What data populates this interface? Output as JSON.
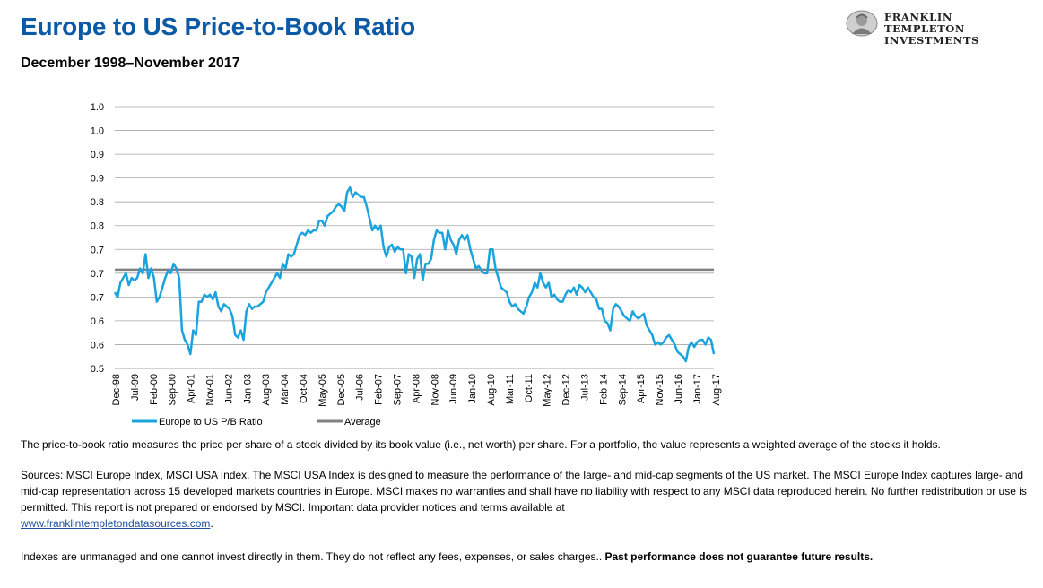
{
  "header": {
    "title": "Europe to US Price-to-Book Ratio",
    "subtitle": "December 1998–November 2017"
  },
  "logo": {
    "line1": "FRANKLIN TEMPLETON",
    "line2": "INVESTMENTS",
    "icon": "franklin-portrait-icon"
  },
  "colors": {
    "title": "#0c5aa6",
    "series_line": "#1aa3dd",
    "average_line": "#808080",
    "gridline": "#a6a6a6",
    "link": "#1f4e9c"
  },
  "chart_data": {
    "type": "line",
    "title": "",
    "xlabel": "",
    "ylabel": "",
    "y_tick_labels": [
      "0.5",
      "0.6",
      "0.6",
      "0.7",
      "0.7",
      "0.7",
      "0.8",
      "0.8",
      "0.9",
      "0.9",
      "1.0",
      "1.0"
    ],
    "ylim": [
      0.5,
      1.05
    ],
    "x_tick_labels": [
      "Dec-98",
      "Jul-99",
      "Feb-00",
      "Sep-00",
      "Apr-01",
      "Nov-01",
      "Jun-02",
      "Jan-03",
      "Aug-03",
      "Mar-04",
      "Oct-04",
      "May-05",
      "Dec-05",
      "Jul-06",
      "Feb-07",
      "Sep-07",
      "Apr-08",
      "Nov-08",
      "Jun-09",
      "Jan-10",
      "Aug-10",
      "Mar-11",
      "Oct-11",
      "May-12",
      "Dec-12",
      "Jul-13",
      "Feb-14",
      "Sep-14",
      "Apr-15",
      "Nov-15",
      "Jun-16",
      "Jan-17",
      "Aug-17"
    ],
    "grid": true,
    "legend_position": "bottom-left",
    "series": [
      {
        "name": "Europe to US P/B Ratio",
        "values": [
          0.66,
          0.65,
          0.68,
          0.69,
          0.7,
          0.675,
          0.69,
          0.685,
          0.69,
          0.71,
          0.7,
          0.74,
          0.69,
          0.71,
          0.69,
          0.64,
          0.65,
          0.67,
          0.69,
          0.705,
          0.7,
          0.72,
          0.71,
          0.69,
          0.58,
          0.56,
          0.55,
          0.53,
          0.58,
          0.57,
          0.64,
          0.64,
          0.655,
          0.65,
          0.655,
          0.645,
          0.66,
          0.63,
          0.62,
          0.635,
          0.63,
          0.625,
          0.61,
          0.57,
          0.565,
          0.58,
          0.56,
          0.62,
          0.635,
          0.625,
          0.63,
          0.63,
          0.635,
          0.64,
          0.66,
          0.67,
          0.68,
          0.69,
          0.7,
          0.69,
          0.72,
          0.71,
          0.74,
          0.735,
          0.74,
          0.76,
          0.78,
          0.785,
          0.78,
          0.79,
          0.785,
          0.79,
          0.79,
          0.81,
          0.81,
          0.8,
          0.82,
          0.825,
          0.83,
          0.84,
          0.845,
          0.84,
          0.83,
          0.87,
          0.88,
          0.86,
          0.87,
          0.865,
          0.86,
          0.86,
          0.84,
          0.815,
          0.79,
          0.8,
          0.79,
          0.8,
          0.755,
          0.735,
          0.755,
          0.76,
          0.745,
          0.755,
          0.75,
          0.75,
          0.7,
          0.74,
          0.735,
          0.69,
          0.73,
          0.74,
          0.685,
          0.72,
          0.72,
          0.73,
          0.77,
          0.79,
          0.785,
          0.785,
          0.75,
          0.79,
          0.77,
          0.76,
          0.74,
          0.77,
          0.78,
          0.77,
          0.78,
          0.75,
          0.73,
          0.71,
          0.715,
          0.705,
          0.7,
          0.7,
          0.75,
          0.75,
          0.71,
          0.69,
          0.67,
          0.665,
          0.66,
          0.64,
          0.63,
          0.635,
          0.625,
          0.62,
          0.615,
          0.63,
          0.65,
          0.66,
          0.68,
          0.67,
          0.7,
          0.68,
          0.67,
          0.68,
          0.65,
          0.655,
          0.645,
          0.64,
          0.64,
          0.655,
          0.665,
          0.66,
          0.67,
          0.655,
          0.675,
          0.67,
          0.66,
          0.67,
          0.66,
          0.65,
          0.645,
          0.625,
          0.625,
          0.6,
          0.595,
          0.58,
          0.625,
          0.635,
          0.63,
          0.62,
          0.61,
          0.605,
          0.6,
          0.62,
          0.61,
          0.605,
          0.61,
          0.615,
          0.59,
          0.58,
          0.57,
          0.55,
          0.555,
          0.55,
          0.555,
          0.565,
          0.57,
          0.56,
          0.55,
          0.535,
          0.53,
          0.525,
          0.515,
          0.545,
          0.555,
          0.545,
          0.555,
          0.56,
          0.56,
          0.55,
          0.565,
          0.56,
          0.53
        ]
      },
      {
        "name": "Average",
        "values": [
          0.7075
        ]
      }
    ]
  },
  "notes": {
    "definition": "The price-to-book ratio measures the price per share of a stock divided by its book value (i.e., net worth) per share. For a portfolio, the value represents a weighted average of the stocks it holds.",
    "sources": "Sources: MSCI Europe Index, MSCI USA Index. The MSCI USA Index is designed to measure the performance of the large- and mid-cap segments of the US market. The MSCI Europe Index captures large- and mid-cap representation across 15 developed markets countries in Europe. MSCI makes no warranties and shall have no liability with respect to any MSCI data reproduced herein. No further redistribution or use is permitted. This report is not prepared or endorsed by MSCI. Important data provider notices and terms available at",
    "sources_link": "www.franklintempletondatasources.com",
    "sources_end": ".",
    "disclaimer": "Indexes are unmanaged and one cannot invest directly in them. They do not reflect any fees, expenses, or sales charges.. ",
    "disclaimer_bold": "Past performance does not guarantee future results."
  }
}
